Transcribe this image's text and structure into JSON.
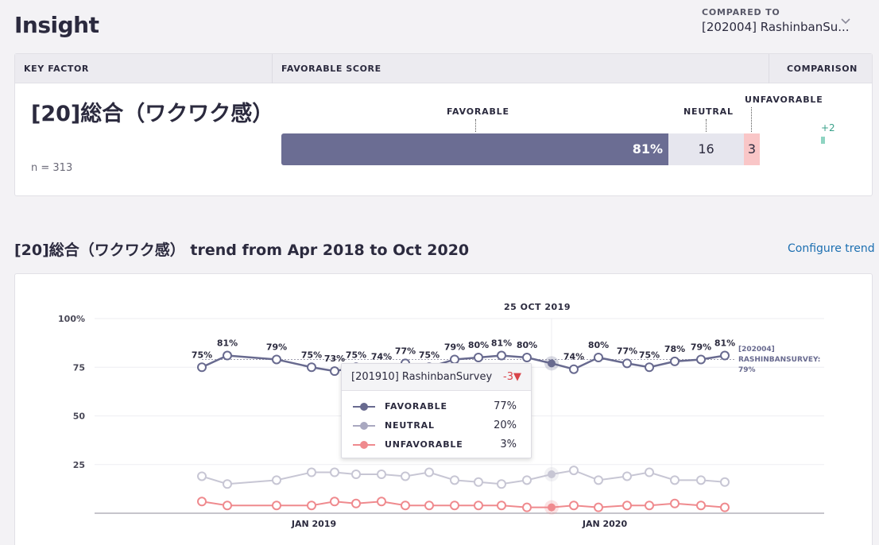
{
  "page": {
    "title": "Insight"
  },
  "compare": {
    "caption": "COMPARED TO",
    "value": "[202004] RashinbanSu..."
  },
  "score_table": {
    "headers": {
      "key_factor": "KEY FACTOR",
      "favorable_score": "FAVORABLE SCORE",
      "comparison": "COMPARISON"
    },
    "factor_name": "[20]総合（ワクワク感）",
    "n_text": "n = 313",
    "bar": {
      "favorable_label": "FAVORABLE",
      "neutral_label": "NEUTRAL",
      "unfavorable_label": "UNFAVORABLE",
      "favorable_text": "81%",
      "neutral_text": "16",
      "unfavorable_text": "3",
      "favorable": 81,
      "neutral": 16,
      "unfavorable": 3
    },
    "comparison_delta": "+2"
  },
  "trend": {
    "title": "[20]総合（ワクワク感） trend from Apr 2018 to Oct 2020",
    "configure_label": "Configure trend"
  },
  "chart_data": {
    "type": "line",
    "y_ticks": [
      "100%",
      "75",
      "50",
      "25"
    ],
    "ylim": [
      0,
      100
    ],
    "x_ticks": [
      "JAN 2019",
      "JAN 2020"
    ],
    "highlight_label": "25 OC​T 2019",
    "benchmark_label": [
      "[202004]",
      "RASHINBANSURVEY:",
      "79%"
    ],
    "benchmark_value": 79,
    "favorable_labels": [
      "75%",
      "81%",
      "79%",
      "75%",
      "73%",
      "75%",
      "74%",
      "77%",
      "75%",
      "79%",
      "80%",
      "81%",
      "80%",
      "",
      "74%",
      "80%",
      "77%",
      "75%",
      "78%",
      "79%",
      "81%"
    ],
    "series": [
      {
        "name": "FAVORABLE",
        "values": [
          75,
          81,
          79,
          75,
          73,
          75,
          74,
          77,
          75,
          79,
          80,
          81,
          80,
          77,
          74,
          80,
          77,
          75,
          78,
          79,
          81
        ]
      },
      {
        "name": "NEUTRAL",
        "values": [
          19,
          15,
          17,
          21,
          21,
          20,
          20,
          19,
          21,
          17,
          16,
          15,
          17,
          20,
          22,
          17,
          19,
          21,
          17,
          17,
          16
        ]
      },
      {
        "name": "UNFAVORABLE",
        "values": [
          6,
          4,
          4,
          4,
          6,
          5,
          6,
          4,
          4,
          4,
          4,
          4,
          3,
          3,
          4,
          3,
          4,
          4,
          5,
          4,
          3
        ]
      }
    ],
    "colors": {
      "favorable": "#686a8f",
      "neutral": "#c7c6d4",
      "unfavorable": "#ef8a8e"
    }
  },
  "tooltip": {
    "survey": "[201910] RashinbanSurvey",
    "delta": "-3▼",
    "rows": [
      {
        "label": "FAVORABLE",
        "value": "77%"
      },
      {
        "label": "NEUTRAL",
        "value": "20%"
      },
      {
        "label": "UNFAVORABLE",
        "value": "3%"
      }
    ]
  }
}
